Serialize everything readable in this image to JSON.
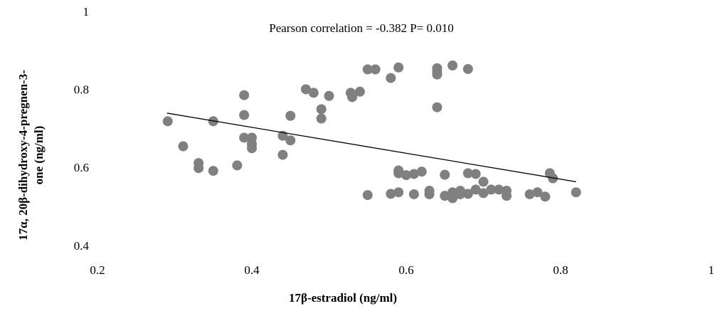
{
  "chart_data": {
    "type": "scatter",
    "title": "Pearson correlation = -0.382 P= 0.010",
    "xlabel": "17β-estradiol (ng/ml)",
    "ylabel": [
      "17α, 20β-dihydroxy-4-pregnen-3-",
      "one (ng/ml)"
    ],
    "xlim": [
      0.2,
      1
    ],
    "xticks": [
      0.2,
      0.4,
      0.6,
      0.8,
      1
    ],
    "ylim": [
      0.4,
      1
    ],
    "yticks": [
      0.4,
      0.6,
      0.8,
      1
    ],
    "grid": false,
    "series": [
      {
        "color": "#808080",
        "x": [
          0.291,
          0.311,
          0.331,
          0.331,
          0.35,
          0.35,
          0.381,
          0.39,
          0.39,
          0.39,
          0.4,
          0.4,
          0.4,
          0.44,
          0.44,
          0.45,
          0.45,
          0.47,
          0.48,
          0.49,
          0.49,
          0.5,
          0.528,
          0.53,
          0.54,
          0.55,
          0.56,
          0.58,
          0.59,
          0.55,
          0.58,
          0.59,
          0.59,
          0.59,
          0.6,
          0.61,
          0.62,
          0.61,
          0.63,
          0.63,
          0.64,
          0.64,
          0.64,
          0.64,
          0.66,
          0.68,
          0.65,
          0.65,
          0.66,
          0.66,
          0.67,
          0.68,
          0.68,
          0.69,
          0.69,
          0.7,
          0.7,
          0.71,
          0.72,
          0.73,
          0.73,
          0.76,
          0.77,
          0.78,
          0.786,
          0.79,
          0.82,
          0.67
        ],
        "values": [
          0.722,
          0.658,
          0.615,
          0.602,
          0.722,
          0.595,
          0.609,
          0.789,
          0.738,
          0.68,
          0.68,
          0.664,
          0.653,
          0.685,
          0.636,
          0.736,
          0.673,
          0.804,
          0.795,
          0.753,
          0.729,
          0.787,
          0.795,
          0.784,
          0.798,
          0.855,
          0.855,
          0.833,
          0.86,
          0.533,
          0.536,
          0.54,
          0.596,
          0.589,
          0.584,
          0.587,
          0.593,
          0.535,
          0.535,
          0.544,
          0.858,
          0.849,
          0.842,
          0.758,
          0.865,
          0.856,
          0.585,
          0.531,
          0.525,
          0.54,
          0.535,
          0.589,
          0.536,
          0.587,
          0.547,
          0.567,
          0.538,
          0.547,
          0.547,
          0.544,
          0.531,
          0.535,
          0.54,
          0.529,
          0.589,
          0.576,
          0.54,
          0.544
        ]
      }
    ],
    "trendline": {
      "color": "#000000",
      "x": [
        0.29,
        0.82
      ],
      "values": [
        0.743,
        0.567
      ]
    }
  }
}
